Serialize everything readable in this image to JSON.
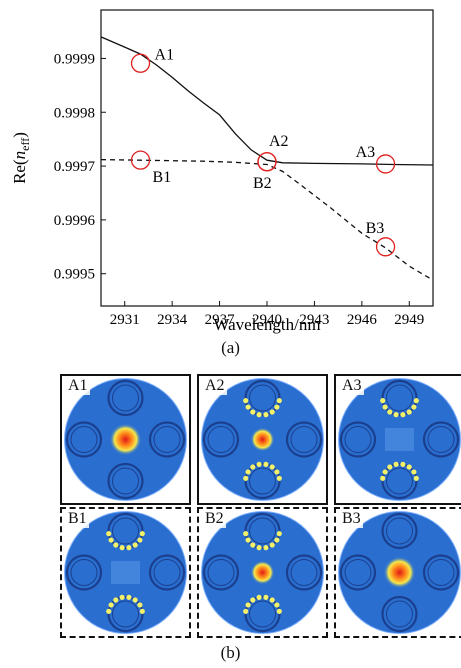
{
  "chart_data": {
    "type": "line",
    "xlabel": "Wavelength/nm",
    "ylabel_main": "Re(",
    "ylabel_var": "n",
    "ylabel_sub": "eff",
    "ylabel_close": ")",
    "xlim": [
      2929.5,
      2950.5
    ],
    "ylim": [
      0.99944,
      0.99999
    ],
    "xticks": [
      2931,
      2934,
      2937,
      2940,
      2943,
      2946,
      2949
    ],
    "yticks": [
      0.9995,
      0.9996,
      0.9997,
      0.9998,
      0.9999
    ],
    "series": [
      {
        "style": "solid",
        "x": [
          2929.5,
          2931,
          2932,
          2933,
          2934,
          2935,
          2936,
          2937,
          2938,
          2939,
          2940,
          2941,
          2943,
          2946,
          2948,
          2950.5
        ],
        "y": [
          0.99994,
          0.999921,
          0.999908,
          0.999888,
          0.999865,
          0.99984,
          0.999817,
          0.999795,
          0.99976,
          0.99973,
          0.999711,
          0.999706,
          0.999705,
          0.999704,
          0.999703,
          0.999702
        ]
      },
      {
        "style": "dashed",
        "x": [
          2929.5,
          2932,
          2934,
          2936,
          2938,
          2939,
          2940,
          2941,
          2942,
          2944,
          2946,
          2947.5,
          2949,
          2950.5
        ],
        "y": [
          0.999712,
          0.999711,
          0.99971,
          0.999709,
          0.999707,
          0.999705,
          0.999703,
          0.99969,
          0.999668,
          0.999623,
          0.999575,
          0.999548,
          0.999514,
          0.999488
        ]
      }
    ],
    "annotations": [
      {
        "label": "A1",
        "x": 2932.0,
        "y": 0.999891,
        "pos": "right-up"
      },
      {
        "label": "B1",
        "x": 2932.0,
        "y": 0.999711,
        "pos": "right-down"
      },
      {
        "label": "A2",
        "x": 2940.0,
        "y": 0.999708,
        "pos": "up-right"
      },
      {
        "label": "B2",
        "x": 2940.0,
        "y": 0.999708,
        "pos": "down-left"
      },
      {
        "label": "A3",
        "x": 2947.5,
        "y": 0.999704,
        "pos": "left-up"
      },
      {
        "label": "B3",
        "x": 2947.5,
        "y": 0.99955,
        "pos": "up-left"
      }
    ]
  },
  "captions": {
    "a": "(a)",
    "b": "(b)"
  },
  "mode_panels": [
    {
      "label": "A1",
      "pattern": "core",
      "border": "solid"
    },
    {
      "label": "A2",
      "pattern": "mixed",
      "border": "solid"
    },
    {
      "label": "A3",
      "pattern": "ring",
      "border": "solid"
    },
    {
      "label": "B1",
      "pattern": "ring",
      "border": "dashed"
    },
    {
      "label": "B2",
      "pattern": "mixed",
      "border": "dashed"
    },
    {
      "label": "B3",
      "pattern": "core",
      "border": "dashed"
    }
  ],
  "colors": {
    "background_field": "#2a6fd0",
    "ring_dark": "#1b3f8f",
    "hot": "#e01818",
    "warm": "#f5e84c",
    "marker": "#e02020"
  }
}
